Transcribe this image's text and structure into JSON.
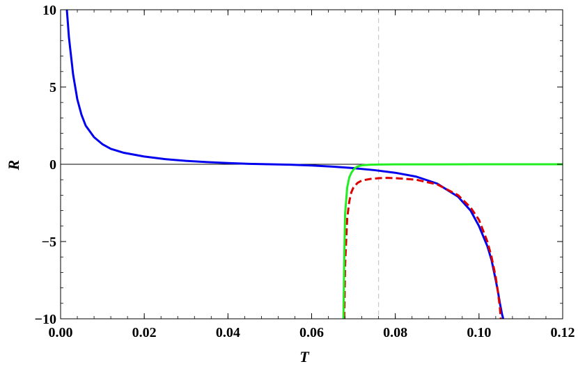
{
  "chart_data": {
    "type": "line",
    "title": "",
    "xlabel": "T",
    "ylabel": "R",
    "xlim": [
      0,
      0.12
    ],
    "ylim": [
      -10,
      10
    ],
    "x_ticks": [
      0.0,
      0.02,
      0.04,
      0.06,
      0.08,
      0.1,
      0.12
    ],
    "x_tick_labels": [
      "0.00",
      "0.02",
      "0.04",
      "0.06",
      "0.08",
      "0.10",
      "0.12"
    ],
    "y_ticks": [
      -10,
      -5,
      0,
      5,
      10
    ],
    "y_tick_labels": [
      "−10",
      "−5",
      "0",
      "5",
      "10"
    ],
    "grid": false,
    "frame": true,
    "zero_line": true,
    "reference_line": {
      "x": 0.076,
      "style": "dashed",
      "color": "#c8c8c8"
    },
    "series": [
      {
        "color": "#0000ee",
        "style": "solid",
        "x": [
          0.0015,
          0.002,
          0.003,
          0.004,
          0.005,
          0.006,
          0.008,
          0.01,
          0.012,
          0.015,
          0.02,
          0.025,
          0.03,
          0.035,
          0.04,
          0.045,
          0.05,
          0.055,
          0.06,
          0.065,
          0.07,
          0.075,
          0.08,
          0.085,
          0.09,
          0.095,
          0.098,
          0.1,
          0.102,
          0.103,
          0.104,
          0.1045,
          0.105,
          0.1055,
          0.1058
        ],
        "y": [
          10,
          8.2,
          5.8,
          4.2,
          3.2,
          2.5,
          1.75,
          1.3,
          1.0,
          0.75,
          0.5,
          0.33,
          0.22,
          0.14,
          0.08,
          0.03,
          0.0,
          -0.03,
          -0.08,
          -0.15,
          -0.25,
          -0.38,
          -0.55,
          -0.8,
          -1.25,
          -2.1,
          -3.0,
          -4.0,
          -5.3,
          -6.2,
          -7.5,
          -8.2,
          -9.0,
          -9.7,
          -10
        ]
      },
      {
        "color": "#dd0000",
        "style": "dashed",
        "x": [
          0.0678,
          0.068,
          0.0685,
          0.069,
          0.0695,
          0.07,
          0.071,
          0.072,
          0.074,
          0.076,
          0.078,
          0.08,
          0.085,
          0.09,
          0.095,
          0.098,
          0.1,
          0.102,
          0.103,
          0.104,
          0.1045,
          0.105,
          0.1052
        ],
        "y": [
          -10,
          -6.5,
          -3.5,
          -2.4,
          -1.8,
          -1.5,
          -1.2,
          -1.05,
          -0.95,
          -0.9,
          -0.88,
          -0.9,
          -1.0,
          -1.3,
          -2.0,
          -2.8,
          -3.6,
          -5.0,
          -6.0,
          -7.3,
          -8.2,
          -9.3,
          -10
        ]
      },
      {
        "color": "#22ee22",
        "style": "solid",
        "x": [
          0.0676,
          0.0678,
          0.068,
          0.0685,
          0.069,
          0.0695,
          0.07,
          0.0705,
          0.071,
          0.072,
          0.074,
          0.076,
          0.08,
          0.09,
          0.1,
          0.11,
          0.12
        ],
        "y": [
          -10,
          -6.0,
          -3.2,
          -1.5,
          -0.85,
          -0.55,
          -0.35,
          -0.22,
          -0.14,
          -0.07,
          -0.03,
          -0.015,
          -0.008,
          -0.004,
          -0.002,
          -0.001,
          -0.0005
        ]
      }
    ]
  }
}
